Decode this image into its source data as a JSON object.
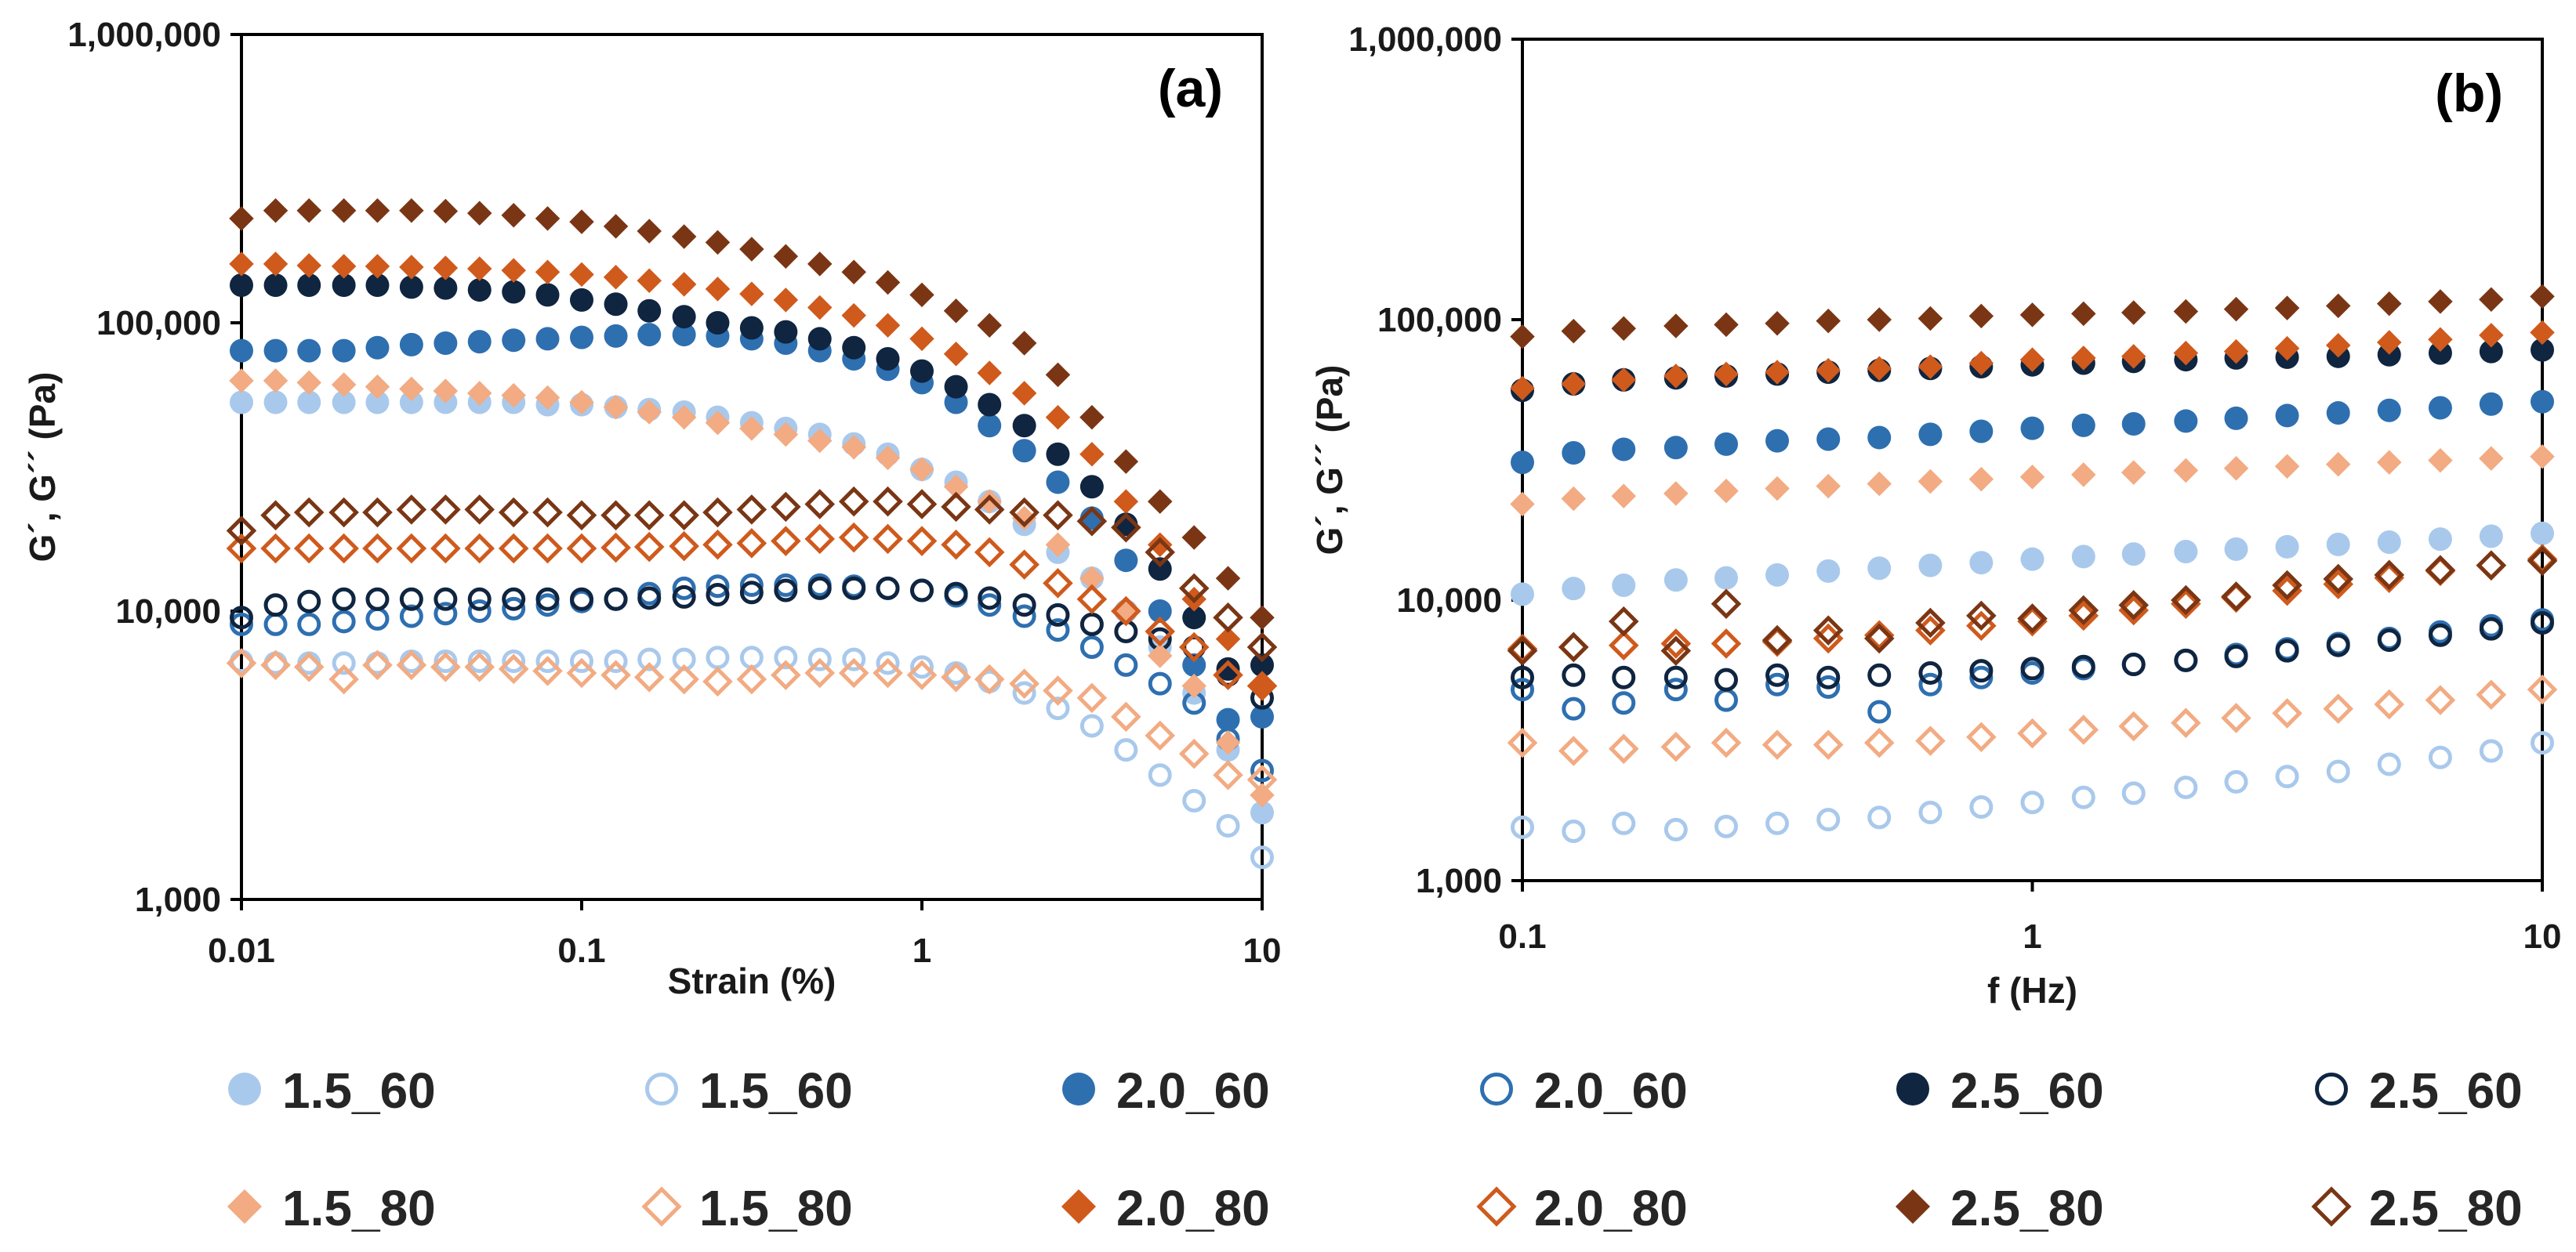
{
  "legend": {
    "items": [
      {
        "label": "1.5_60",
        "color": "#a9c9ec",
        "marker": "circle",
        "filled": true
      },
      {
        "label": "1.5_60",
        "color": "#a9c9ec",
        "marker": "circle",
        "filled": false
      },
      {
        "label": "2.0_60",
        "color": "#2e6fb0",
        "marker": "circle",
        "filled": true
      },
      {
        "label": "2.0_60",
        "color": "#2e6fb0",
        "marker": "circle",
        "filled": false
      },
      {
        "label": "2.5_60",
        "color": "#0f2540",
        "marker": "circle",
        "filled": true
      },
      {
        "label": "2.5_60",
        "color": "#0f2540",
        "marker": "circle",
        "filled": false
      },
      {
        "label": "1.5_80",
        "color": "#f2ab82",
        "marker": "diamond",
        "filled": true
      },
      {
        "label": "1.5_80",
        "color": "#f2ab82",
        "marker": "diamond",
        "filled": false
      },
      {
        "label": "2.0_80",
        "color": "#cf5a1c",
        "marker": "diamond",
        "filled": true
      },
      {
        "label": "2.0_80",
        "color": "#cf5a1c",
        "marker": "diamond",
        "filled": false
      },
      {
        "label": "2.5_80",
        "color": "#7a3614",
        "marker": "diamond",
        "filled": true
      },
      {
        "label": "2.5_80",
        "color": "#7a3614",
        "marker": "diamond",
        "filled": false
      }
    ]
  },
  "chart_data": [
    {
      "type": "scatter",
      "panel_label": "(a)",
      "xlabel": "Strain (%)",
      "ylabel": "G´, G´´ (Pa)",
      "xscale": "log",
      "yscale": "log",
      "xlim": [
        0.01,
        10
      ],
      "ylim": [
        1000,
        1000000
      ],
      "xticks": [
        "0.01",
        "0.1",
        "1",
        "10"
      ],
      "yticks": [
        "1,000",
        "10,000",
        "100,000",
        "1,000,000"
      ],
      "grid": false,
      "x": [
        0.01,
        0.0126,
        0.0158,
        0.02,
        0.0251,
        0.0316,
        0.0398,
        0.0501,
        0.0631,
        0.0794,
        0.1,
        0.126,
        0.158,
        0.2,
        0.251,
        0.316,
        0.398,
        0.501,
        0.631,
        0.794,
        1,
        1.26,
        1.58,
        2,
        2.51,
        3.16,
        3.98,
        5.01,
        6.31,
        7.94,
        10
      ],
      "series": [
        {
          "name": "1.5_60",
          "values": [
            53000,
            53000,
            53000,
            53000,
            53000,
            53000,
            53000,
            53000,
            53000,
            52000,
            52000,
            51000,
            50000,
            49000,
            47000,
            45000,
            43000,
            41000,
            38000,
            35000,
            31000,
            28000,
            24000,
            20000,
            16000,
            13000,
            10000,
            7500,
            5200,
            3300,
            2000
          ]
        },
        {
          "name": "1.5_60",
          "values": [
            6700,
            6600,
            6600,
            6600,
            6600,
            6700,
            6700,
            6700,
            6700,
            6700,
            6700,
            6700,
            6800,
            6800,
            6900,
            6900,
            6900,
            6800,
            6800,
            6600,
            6400,
            6100,
            5700,
            5200,
            4600,
            4000,
            3300,
            2700,
            2200,
            1800,
            1400
          ]
        },
        {
          "name": "2.0_60",
          "values": [
            80000,
            80000,
            80000,
            80000,
            82000,
            84000,
            85000,
            86000,
            87000,
            88000,
            89000,
            90000,
            91000,
            91000,
            90000,
            88000,
            85000,
            80000,
            75000,
            69000,
            62000,
            53000,
            44000,
            36000,
            28000,
            21000,
            15000,
            10000,
            6500,
            4200,
            4300
          ]
        },
        {
          "name": "2.0_60",
          "values": [
            9000,
            9000,
            9000,
            9200,
            9400,
            9600,
            9800,
            10000,
            10200,
            10500,
            10800,
            11000,
            11500,
            12000,
            12200,
            12300,
            12300,
            12300,
            12200,
            12000,
            11800,
            11300,
            10500,
            9600,
            8600,
            7500,
            6500,
            5600,
            4800,
            3600,
            2800
          ]
        },
        {
          "name": "2.5_60",
          "values": [
            135000,
            135000,
            135000,
            135000,
            135000,
            133000,
            132000,
            130000,
            128000,
            125000,
            120000,
            116000,
            110000,
            105000,
            100000,
            96000,
            93000,
            88000,
            82000,
            75000,
            68000,
            60000,
            52000,
            44000,
            35000,
            27000,
            20000,
            14000,
            9500,
            6300,
            6500
          ]
        },
        {
          "name": "2.5_60",
          "values": [
            9500,
            10500,
            10800,
            11000,
            11000,
            11000,
            11000,
            11000,
            11000,
            11000,
            11000,
            11000,
            11100,
            11200,
            11400,
            11600,
            11800,
            12000,
            12000,
            12000,
            11800,
            11500,
            11100,
            10500,
            9700,
            9000,
            8500,
            8000,
            7500,
            6000,
            5000
          ]
        },
        {
          "name": "1.5_80",
          "values": [
            63000,
            63000,
            62000,
            61000,
            60000,
            59000,
            58000,
            57000,
            56000,
            55000,
            53000,
            51000,
            49000,
            47000,
            45000,
            43000,
            41000,
            39000,
            37000,
            34000,
            31000,
            27000,
            24000,
            21000,
            17000,
            13000,
            9800,
            7000,
            5500,
            3500,
            2300
          ]
        },
        {
          "name": "1.5_80",
          "values": [
            6600,
            6500,
            6400,
            5800,
            6500,
            6500,
            6400,
            6400,
            6300,
            6200,
            6100,
            6000,
            5900,
            5800,
            5700,
            5800,
            6000,
            6100,
            6100,
            6100,
            6000,
            5900,
            5800,
            5600,
            5300,
            5000,
            4300,
            3700,
            3200,
            2700,
            2600
          ]
        },
        {
          "name": "2.0_80",
          "values": [
            160000,
            160000,
            158000,
            157000,
            157000,
            156000,
            155000,
            154000,
            152000,
            150000,
            147000,
            144000,
            140000,
            136000,
            131000,
            126000,
            120000,
            113000,
            106000,
            98000,
            88000,
            78000,
            67000,
            57000,
            47000,
            35000,
            24000,
            17000,
            11000,
            8000,
            5500
          ]
        },
        {
          "name": "2.0_80",
          "values": [
            16500,
            16500,
            16500,
            16500,
            16500,
            16500,
            16500,
            16500,
            16500,
            16500,
            16500,
            16600,
            16700,
            16800,
            17000,
            17200,
            17500,
            17800,
            18000,
            17800,
            17500,
            17000,
            16000,
            14500,
            12500,
            11000,
            10000,
            8500,
            7500,
            6000,
            5500
          ]
        },
        {
          "name": "2.5_80",
          "values": [
            230000,
            245000,
            245000,
            245000,
            245000,
            245000,
            244000,
            240000,
            236000,
            230000,
            224000,
            216000,
            208000,
            199000,
            190000,
            180000,
            170000,
            160000,
            150000,
            138000,
            125000,
            110000,
            98000,
            85000,
            66000,
            47000,
            33000,
            24000,
            18000,
            13000,
            9500
          ]
        },
        {
          "name": "2.5_80",
          "values": [
            19000,
            21500,
            22000,
            22000,
            22000,
            22500,
            22500,
            22500,
            22000,
            22000,
            21500,
            21500,
            21500,
            21500,
            22000,
            22500,
            23000,
            23500,
            24000,
            24000,
            23500,
            23000,
            22500,
            22000,
            21500,
            20500,
            19500,
            16000,
            12000,
            9500,
            7500
          ]
        }
      ]
    },
    {
      "type": "scatter",
      "panel_label": "(b)",
      "xlabel": "f (Hz)",
      "ylabel": "G´, G´´ (Pa)",
      "xscale": "log",
      "yscale": "log",
      "xlim": [
        0.1,
        10
      ],
      "ylim": [
        1000,
        1000000
      ],
      "xticks": [
        "0.1",
        "1",
        "10"
      ],
      "yticks": [
        "1,000",
        "10,000",
        "100,000",
        "1,000,000"
      ],
      "grid": false,
      "x": [
        0.1,
        0.126,
        0.158,
        0.2,
        0.251,
        0.316,
        0.398,
        0.501,
        0.631,
        0.794,
        1,
        1.26,
        1.58,
        2,
        2.51,
        3.16,
        3.98,
        5.01,
        6.31,
        7.94,
        10
      ],
      "series": [
        {
          "name": "1.5_60",
          "values": [
            10500,
            11000,
            11300,
            11800,
            12000,
            12300,
            12700,
            13000,
            13300,
            13600,
            14000,
            14300,
            14600,
            14900,
            15200,
            15500,
            15800,
            16100,
            16500,
            16900,
            17300
          ]
        },
        {
          "name": "1.5_60",
          "values": [
            1550,
            1500,
            1600,
            1520,
            1560,
            1600,
            1650,
            1680,
            1750,
            1830,
            1900,
            1980,
            2050,
            2150,
            2250,
            2350,
            2450,
            2600,
            2750,
            2900,
            3100
          ]
        },
        {
          "name": "2.0_60",
          "values": [
            31000,
            33500,
            34500,
            35000,
            36000,
            37000,
            37500,
            38000,
            39000,
            40000,
            41000,
            42000,
            42500,
            43500,
            44500,
            45500,
            46500,
            47500,
            48500,
            50000,
            51000
          ]
        },
        {
          "name": "2.0_60",
          "values": [
            4800,
            4100,
            4300,
            4800,
            4400,
            5000,
            4900,
            4000,
            5000,
            5300,
            5500,
            5700,
            5900,
            6100,
            6400,
            6700,
            7000,
            7300,
            7700,
            8100,
            8500
          ]
        },
        {
          "name": "2.5_60",
          "values": [
            56000,
            59000,
            61000,
            62000,
            63000,
            64000,
            65000,
            66000,
            67000,
            68000,
            69000,
            70000,
            71000,
            72000,
            73000,
            73500,
            74000,
            75000,
            76000,
            77000,
            78000
          ]
        },
        {
          "name": "2.5_60",
          "values": [
            5300,
            5400,
            5300,
            5300,
            5200,
            5400,
            5300,
            5400,
            5500,
            5600,
            5700,
            5800,
            5900,
            6100,
            6300,
            6600,
            6900,
            7200,
            7500,
            7900,
            8300
          ]
        },
        {
          "name": "1.5_80",
          "values": [
            22000,
            23000,
            23500,
            24000,
            24500,
            25000,
            25500,
            26000,
            26500,
            27000,
            27500,
            28000,
            28500,
            29000,
            29500,
            30000,
            30500,
            31000,
            31500,
            32000,
            32500
          ]
        },
        {
          "name": "1.5_80",
          "values": [
            3100,
            2900,
            2950,
            3000,
            3100,
            3050,
            3050,
            3100,
            3150,
            3250,
            3350,
            3450,
            3550,
            3650,
            3800,
            3950,
            4100,
            4250,
            4400,
            4600,
            4800
          ]
        },
        {
          "name": "2.0_80",
          "values": [
            57000,
            59000,
            61000,
            63000,
            64000,
            65000,
            66000,
            67000,
            68000,
            70000,
            72000,
            73000,
            74000,
            76000,
            77000,
            79000,
            81000,
            83000,
            85000,
            88000,
            90000
          ]
        },
        {
          "name": "2.0_80",
          "values": [
            6700,
            6800,
            6900,
            7000,
            7000,
            7100,
            7300,
            7500,
            7800,
            8100,
            8400,
            8800,
            9200,
            9700,
            10200,
            10800,
            11400,
            12000,
            12700,
            13300,
            14000
          ]
        },
        {
          "name": "2.5_80",
          "values": [
            87000,
            91000,
            93000,
            95000,
            96000,
            97000,
            99000,
            100000,
            101000,
            103000,
            104000,
            105000,
            106000,
            107000,
            109000,
            110000,
            112000,
            114000,
            116000,
            118000,
            121000
          ]
        },
        {
          "name": "2.5_80",
          "values": [
            6600,
            6800,
            8400,
            6600,
            9700,
            7200,
            7800,
            7300,
            8300,
            8800,
            8600,
            9200,
            9600,
            10000,
            10300,
            11300,
            11900,
            12300,
            12800,
            13300,
            13800
          ]
        }
      ]
    }
  ]
}
